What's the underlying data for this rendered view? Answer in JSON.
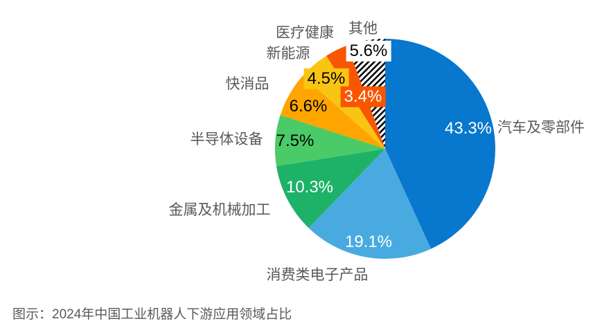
{
  "caption": {
    "text": "图示：2024年中国工业机器人下游应用领域占比",
    "color": "#595959"
  },
  "chart_data": {
    "type": "pie",
    "title": "2024年中国工业机器人下游应用领域占比",
    "unit": "%",
    "start_angle_deg": 0,
    "direction": "clockwise",
    "legend_position": "none (category labels placed around pie)",
    "categories": [
      "汽车及零部件",
      "消费类电子产品",
      "金属及机械加工",
      "半导体设备",
      "快消品",
      "新能源",
      "医疗健康",
      "其他"
    ],
    "values": [
      43.3,
      19.1,
      10.3,
      7.5,
      6.6,
      4.5,
      3.4,
      5.6
    ],
    "value_labels": [
      "43.3%",
      "19.1%",
      "10.3%",
      "7.5%",
      "6.6%",
      "4.5%",
      "3.4%",
      "5.6%"
    ],
    "slice_colors": [
      "#0877CE",
      "#49AADF",
      "#1EB269",
      "#4ACB67",
      "#FFA502",
      "#F9C513",
      "#F95602",
      "hatch"
    ],
    "hatch_style": {
      "pattern": "diagonal-stripes",
      "fg": "#000000",
      "bg": "#ffffff"
    },
    "category_label_color": "#595959"
  }
}
